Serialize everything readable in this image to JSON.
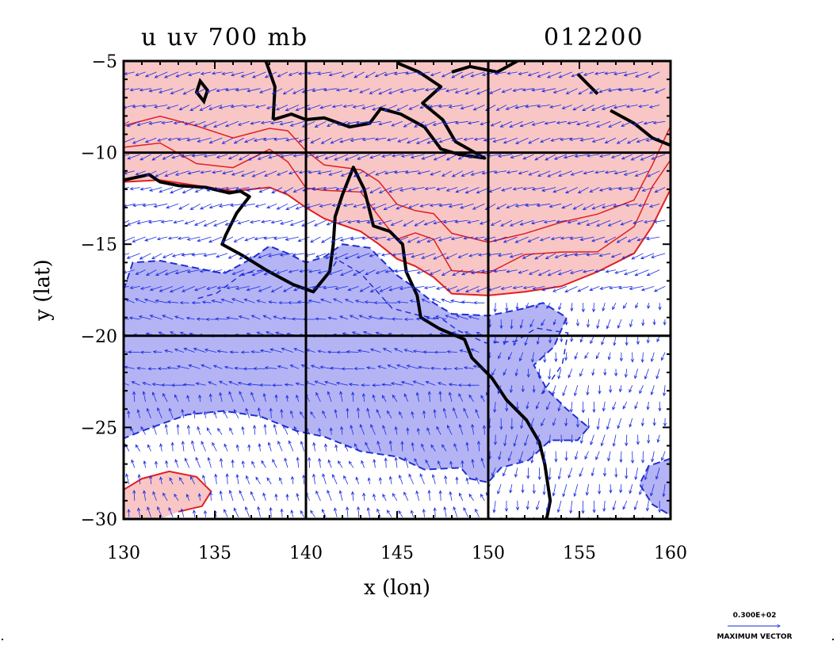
{
  "title": {
    "left": "u  uv  700  mb",
    "right": "012200"
  },
  "axes": {
    "xlabel": "x (lon)",
    "ylabel": "y (lat)",
    "xlim": [
      130,
      160
    ],
    "ylim": [
      -30,
      -5
    ],
    "xticks": [
      "130",
      "135",
      "140",
      "145",
      "150",
      "155",
      "160"
    ],
    "yticks": [
      "−5",
      "−10",
      "−15",
      "−20",
      "−25",
      "−30"
    ]
  },
  "vector_legend": {
    "value": "0.300E+02",
    "label": "MAXIMUM VECTOR"
  },
  "colors": {
    "positive_fill": "#f9c6c6",
    "positive_contour": "#e02020",
    "negative_fill": "#b4b4f5",
    "negative_contour": "#2030d0",
    "vectors": "#1a2be0",
    "coastline": "#000000"
  },
  "chart_data": {
    "type": "map",
    "variable": "u",
    "level_mb": 700,
    "vector_field": "uv",
    "time_code": "012200",
    "grid": true,
    "gridlines_x": [
      140,
      150
    ],
    "gridlines_y": [
      -10,
      -20
    ],
    "positive_region": [
      [
        130,
        -5
      ],
      [
        160,
        -5
      ],
      [
        160,
        -12
      ],
      [
        159,
        -14
      ],
      [
        158,
        -15.5
      ],
      [
        156,
        -16.5
      ],
      [
        154,
        -17.3
      ],
      [
        152,
        -17.6
      ],
      [
        150,
        -17.8
      ],
      [
        148,
        -17.7
      ],
      [
        147,
        -16.8
      ],
      [
        146,
        -16.2
      ],
      [
        145,
        -15.8
      ],
      [
        144,
        -15
      ],
      [
        143,
        -14.3
      ],
      [
        141,
        -13.6
      ],
      [
        140,
        -13
      ],
      [
        139,
        -12.3
      ],
      [
        138,
        -11.9
      ],
      [
        136,
        -12.1
      ],
      [
        134,
        -11.8
      ],
      [
        132,
        -11.5
      ],
      [
        130,
        -11.6
      ]
    ],
    "positive_region_sw": [
      [
        130,
        -30
      ],
      [
        130,
        -28.4
      ],
      [
        131,
        -27.8
      ],
      [
        132.5,
        -27.4
      ],
      [
        134,
        -27.7
      ],
      [
        134.8,
        -28.5
      ],
      [
        134.3,
        -29.3
      ],
      [
        133,
        -29.6
      ],
      [
        132,
        -30
      ]
    ],
    "negative_region": [
      [
        130,
        -17.5
      ],
      [
        130.5,
        -16
      ],
      [
        132,
        -15.9
      ],
      [
        134,
        -16.3
      ],
      [
        135.5,
        -16.6
      ],
      [
        137,
        -15.8
      ],
      [
        138,
        -15.1
      ],
      [
        139,
        -15.5
      ],
      [
        140,
        -16
      ],
      [
        141,
        -15.7
      ],
      [
        142,
        -15
      ],
      [
        143.5,
        -15.2
      ],
      [
        145,
        -16.7
      ],
      [
        146,
        -17.4
      ],
      [
        147,
        -18.2
      ],
      [
        148,
        -18.8
      ],
      [
        150,
        -18.9
      ],
      [
        152,
        -18.5
      ],
      [
        153,
        -18.2
      ],
      [
        154.3,
        -19
      ],
      [
        153.6,
        -20.6
      ],
      [
        152.5,
        -21.6
      ],
      [
        153.2,
        -22.9
      ],
      [
        154.3,
        -24
      ],
      [
        155.5,
        -25
      ],
      [
        154.9,
        -25.7
      ],
      [
        153.4,
        -25.7
      ],
      [
        152.2,
        -26.8
      ],
      [
        150.7,
        -27.2
      ],
      [
        150,
        -28
      ],
      [
        149,
        -27.8
      ],
      [
        148.5,
        -27.2
      ],
      [
        146.5,
        -27.3
      ],
      [
        145,
        -26.6
      ],
      [
        143,
        -26.3
      ],
      [
        141,
        -25.5
      ],
      [
        139.5,
        -25.2
      ],
      [
        137.5,
        -24.4
      ],
      [
        135.5,
        -24.1
      ],
      [
        133.5,
        -24.3
      ],
      [
        131,
        -25.2
      ],
      [
        130,
        -25.6
      ]
    ],
    "negative_region_se": [
      [
        160,
        -26.7
      ],
      [
        158.8,
        -27.1
      ],
      [
        158.3,
        -28.1
      ],
      [
        159,
        -29.2
      ],
      [
        160,
        -29.8
      ]
    ],
    "coastline_australia": [
      [
        130,
        -11.5
      ],
      [
        131.4,
        -11.2
      ],
      [
        132,
        -11.6
      ],
      [
        133,
        -11.8
      ],
      [
        134.5,
        -11.9
      ],
      [
        135.8,
        -12.2
      ],
      [
        136.4,
        -12.1
      ],
      [
        136.9,
        -12.4
      ],
      [
        136.2,
        -13.3
      ],
      [
        135.6,
        -14.5
      ],
      [
        135.4,
        -15
      ],
      [
        136.5,
        -15.6
      ],
      [
        137.8,
        -16.4
      ],
      [
        139.3,
        -17.2
      ],
      [
        140.4,
        -17.6
      ],
      [
        141.3,
        -16.5
      ],
      [
        141.5,
        -15
      ],
      [
        141.6,
        -13.5
      ],
      [
        142,
        -12.3
      ],
      [
        142.6,
        -10.8
      ],
      [
        143.2,
        -12
      ],
      [
        143.7,
        -14
      ],
      [
        144.6,
        -14.3
      ],
      [
        145.3,
        -15
      ],
      [
        145.5,
        -16.5
      ],
      [
        146.1,
        -17.8
      ],
      [
        146.3,
        -19
      ],
      [
        147.3,
        -19.6
      ],
      [
        148.7,
        -20.2
      ],
      [
        149.1,
        -21.2
      ],
      [
        150.2,
        -22.3
      ],
      [
        151,
        -23.5
      ],
      [
        152.1,
        -24.6
      ],
      [
        152.8,
        -25.8
      ],
      [
        153.1,
        -27
      ],
      [
        153.4,
        -29
      ],
      [
        153.2,
        -30
      ]
    ],
    "coastline_new_guinea": [
      [
        138.2,
        -8.2
      ],
      [
        139.2,
        -7.9
      ],
      [
        140,
        -8.2
      ],
      [
        141,
        -8.1
      ],
      [
        142.4,
        -8.6
      ],
      [
        143.5,
        -8.4
      ],
      [
        144.1,
        -7.6
      ],
      [
        145.2,
        -7.9
      ],
      [
        146.5,
        -8.6
      ],
      [
        147.4,
        -9.8
      ],
      [
        148.4,
        -10.1
      ],
      [
        149.8,
        -10.3
      ],
      [
        148.2,
        -9.4
      ],
      [
        147.5,
        -8.2
      ],
      [
        146.4,
        -7.3
      ],
      [
        147.4,
        -6.4
      ],
      [
        146.2,
        -5.6
      ],
      [
        145,
        -5.1
      ]
    ],
    "coastline_new_guinea_west": [
      [
        137.8,
        -5
      ],
      [
        138.3,
        -6.4
      ],
      [
        138.2,
        -8.2
      ]
    ],
    "coastline_new_britain": [
      [
        148,
        -5.6
      ],
      [
        149,
        -5.3
      ],
      [
        150.5,
        -5.6
      ],
      [
        151.6,
        -5
      ]
    ],
    "coastline_bougainville": [
      [
        154.9,
        -5.7
      ],
      [
        155.5,
        -6.3
      ],
      [
        156,
        -6.8
      ]
    ],
    "coastline_solomons": [
      [
        156.7,
        -7.7
      ],
      [
        158,
        -8.4
      ],
      [
        159,
        -9.2
      ],
      [
        160,
        -9.6
      ]
    ],
    "island_small": [
      [
        134.2,
        -6.1
      ],
      [
        134.6,
        -6.6
      ],
      [
        134.4,
        -7.2
      ],
      [
        134.0,
        -6.7
      ]
    ],
    "vectors": {
      "x_start": 130,
      "x_step": 0.6,
      "y_start": -5.6,
      "y_step": -0.9,
      "nx": 50,
      "ny": 28
    }
  }
}
